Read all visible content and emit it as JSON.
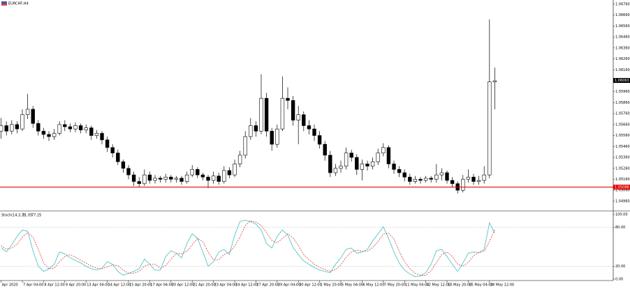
{
  "chart_data": [
    {
      "type": "candlestick",
      "title": "EURCHF,H4",
      "categories": [
        "Apr 2020",
        null,
        null,
        null,
        "7 Apr 04:00",
        null,
        null,
        null,
        "8 Apr 12:00",
        null,
        null,
        null,
        "9 Apr 20:00",
        null,
        null,
        null,
        "13 Apr 04:00",
        null,
        null,
        null,
        "14 Apr 12:00",
        null,
        null,
        null,
        "15 Apr 20:00",
        null,
        null,
        null,
        "17 Apr 04:00",
        null,
        null,
        null,
        "20 Apr 12:00",
        null,
        null,
        null,
        "21 Apr 20:00",
        null,
        null,
        null,
        "23 Apr 04:00",
        null,
        null,
        null,
        "24 Apr 12:00",
        null,
        null,
        null,
        "27 Apr 20:00",
        null,
        null,
        null,
        "29 Apr 04:00",
        null,
        null,
        null,
        "30 Apr 12:00",
        null,
        null,
        null,
        "1 May 20:00",
        null,
        null,
        null,
        "5 May 04:00",
        null,
        null,
        null,
        "6 May 12:00",
        null,
        null,
        null,
        "7 May 20:00",
        null,
        null,
        null,
        "11 May 04:00",
        null,
        null,
        null,
        "12 May 12:00",
        null,
        null,
        null,
        "13 May 20:00",
        null,
        null,
        null,
        "15 May 04:00",
        null,
        null,
        null,
        "18 May 12:00",
        null
      ],
      "open": [
        1.056,
        1.0565,
        1.056,
        1.0566,
        1.0562,
        1.0575,
        1.058,
        1.0567,
        1.056,
        1.0557,
        1.0555,
        1.0558,
        1.0566,
        1.0564,
        1.0562,
        1.0565,
        1.0561,
        1.0563,
        1.0556,
        1.0558,
        1.0552,
        1.0545,
        1.054,
        1.0532,
        1.0526,
        1.052,
        1.0514,
        1.0512,
        1.052,
        1.0515,
        1.0517,
        1.0516,
        1.0518,
        1.0516,
        1.0517,
        1.0514,
        1.052,
        1.0525,
        1.052,
        1.0518,
        1.0515,
        1.0519,
        1.0514,
        1.0524,
        1.052,
        1.053,
        1.0538,
        1.0555,
        1.0565,
        1.056,
        1.059,
        1.056,
        1.0548,
        1.0562,
        1.059,
        1.0588,
        1.057,
        1.0575,
        1.0565,
        1.0562,
        1.0556,
        1.0548,
        1.0538,
        1.0522,
        1.0526,
        1.0528,
        1.054,
        1.0536,
        1.0525,
        1.053,
        1.0528,
        1.0532,
        1.054,
        1.0545,
        1.053,
        1.0525,
        1.0522,
        1.0518,
        1.0514,
        1.0516,
        1.0515,
        1.0517,
        1.0516,
        1.052,
        1.0522,
        1.0515,
        1.0512,
        1.0506,
        1.0516,
        1.0518,
        1.0514,
        1.0515,
        1.052,
        1.0605
      ],
      "high": [
        1.0572,
        1.0569,
        1.057,
        1.0569,
        1.058,
        1.0594,
        1.0583,
        1.057,
        1.0563,
        1.056,
        1.0562,
        1.0569,
        1.057,
        1.0567,
        1.0568,
        1.0567,
        1.0566,
        1.0565,
        1.0561,
        1.056,
        1.0555,
        1.0548,
        1.0543,
        1.0534,
        1.0529,
        1.0523,
        1.0518,
        1.0525,
        1.0523,
        1.052,
        1.0519,
        1.0521,
        1.052,
        1.0519,
        1.0519,
        1.0523,
        1.0529,
        1.0527,
        1.0522,
        1.052,
        1.0523,
        1.0522,
        1.0528,
        1.0527,
        1.0534,
        1.0542,
        1.056,
        1.0572,
        1.0569,
        1.0612,
        1.0595,
        1.0563,
        1.0566,
        1.061,
        1.06,
        1.0592,
        1.0583,
        1.0578,
        1.057,
        1.0566,
        1.056,
        1.0551,
        1.0542,
        1.053,
        1.0533,
        1.0545,
        1.0543,
        1.0539,
        1.0534,
        1.0533,
        1.0536,
        1.0544,
        1.0549,
        1.0547,
        1.0533,
        1.0528,
        1.0525,
        1.0521,
        1.0519,
        1.0518,
        1.0519,
        1.0519,
        1.053,
        1.0526,
        1.0524,
        1.0518,
        1.0514,
        1.052,
        1.0525,
        1.0521,
        1.0519,
        1.0528,
        1.0662,
        1.0618
      ],
      "low": [
        1.0553,
        1.0556,
        1.0557,
        1.0558,
        1.056,
        1.0571,
        1.0563,
        1.0556,
        1.0553,
        1.0551,
        1.0552,
        1.0556,
        1.056,
        1.0559,
        1.0559,
        1.0558,
        1.0558,
        1.0552,
        1.0553,
        1.0548,
        1.0541,
        1.0536,
        1.0529,
        1.0522,
        1.0516,
        1.051,
        1.0509,
        1.051,
        1.0512,
        1.0512,
        1.0513,
        1.0513,
        1.0513,
        1.0513,
        1.0511,
        1.0512,
        1.0518,
        1.0517,
        1.0515,
        1.0508,
        1.0512,
        1.0511,
        1.0512,
        1.0517,
        1.0518,
        1.0527,
        1.0535,
        1.0552,
        1.0555,
        1.0557,
        1.0555,
        1.0542,
        1.0545,
        1.056,
        1.058,
        1.0565,
        1.0548,
        1.056,
        1.0557,
        1.0551,
        1.0544,
        1.0533,
        1.0518,
        1.0519,
        1.0522,
        1.0525,
        1.0532,
        1.052,
        1.0515,
        1.0524,
        1.0525,
        1.0529,
        1.0537,
        1.0526,
        1.0521,
        1.0518,
        1.0514,
        1.0511,
        1.0512,
        1.0512,
        1.0513,
        1.0513,
        1.0513,
        1.0515,
        1.0512,
        1.0509,
        1.0503,
        1.0504,
        1.0513,
        1.0511,
        1.0511,
        1.0512,
        1.0517,
        1.058
      ],
      "close": [
        1.0565,
        1.056,
        1.0566,
        1.0562,
        1.0575,
        1.058,
        1.0567,
        1.056,
        1.0557,
        1.0555,
        1.0558,
        1.0566,
        1.0564,
        1.0562,
        1.0565,
        1.0561,
        1.0563,
        1.0556,
        1.0558,
        1.0552,
        1.0545,
        1.054,
        1.0532,
        1.0526,
        1.052,
        1.0514,
        1.0512,
        1.052,
        1.0515,
        1.0517,
        1.0516,
        1.0518,
        1.0516,
        1.0517,
        1.0514,
        1.052,
        1.0525,
        1.052,
        1.0518,
        1.0515,
        1.0519,
        1.0514,
        1.0524,
        1.052,
        1.053,
        1.0538,
        1.0555,
        1.0565,
        1.056,
        1.059,
        1.056,
        1.0548,
        1.0562,
        1.059,
        1.0588,
        1.057,
        1.0575,
        1.0565,
        1.0562,
        1.0556,
        1.0548,
        1.0538,
        1.0522,
        1.0526,
        1.0528,
        1.054,
        1.0536,
        1.0525,
        1.053,
        1.0528,
        1.0532,
        1.054,
        1.0545,
        1.053,
        1.0525,
        1.0522,
        1.0518,
        1.0514,
        1.0516,
        1.0515,
        1.0517,
        1.0516,
        1.052,
        1.0522,
        1.0515,
        1.0512,
        1.0506,
        1.0516,
        1.0518,
        1.0514,
        1.0515,
        1.052,
        1.0605,
        1.0606
      ],
      "up_color": "#ffffff",
      "down_color": "#000000",
      "wick_color": "#000000",
      "ylim": [
        1.04877,
        1.06798
      ],
      "yticks": [
        {
          "value": 1.0676,
          "label": "1.06760"
        },
        {
          "value": 1.0666,
          "label": "1.06660"
        },
        {
          "value": 1.0656,
          "label": "1.06560"
        },
        {
          "value": 1.0646,
          "label": "1.06460"
        },
        {
          "value": 1.0636,
          "label": "1.06360"
        },
        {
          "value": 1.0626,
          "label": "1.06260"
        },
        {
          "value": 1.0616,
          "label": "1.06160"
        },
        {
          "value": 1.0596,
          "label": "1.05960"
        },
        {
          "value": 1.0586,
          "label": "1.05860"
        },
        {
          "value": 1.0576,
          "label": "1.05760"
        },
        {
          "value": 1.0566,
          "label": "1.05660"
        },
        {
          "value": 1.0556,
          "label": "1.05560"
        },
        {
          "value": 1.0546,
          "label": "1.05460"
        },
        {
          "value": 1.0536,
          "label": "1.05360"
        },
        {
          "value": 1.0526,
          "label": "1.05260"
        },
        {
          "value": 1.0516,
          "label": "1.05160"
        },
        {
          "value": 1.0506,
          "label": "1.05060"
        },
        {
          "value": 1.0496,
          "label": "1.04960"
        }
      ],
      "bid": 1.06063,
      "hline": {
        "value": 1.05088,
        "color": "#e00000"
      }
    },
    {
      "type": "line",
      "title": "Stoch(14,3,3)",
      "series": [
        {
          "name": "Main",
          "color": "#3fbfbf",
          "dash": false,
          "values": [
            49,
            42,
            53,
            66,
            76,
            74,
            44,
            20,
            12,
            16,
            23,
            42,
            39,
            33,
            29,
            25,
            20,
            16,
            14,
            17,
            27,
            23,
            12,
            6,
            9,
            12,
            16,
            31,
            23,
            14,
            14,
            35,
            44,
            40,
            33,
            55,
            70,
            63,
            42,
            20,
            27,
            42,
            46,
            38,
            68,
            89,
            91,
            89,
            85,
            76,
            55,
            48,
            66,
            76,
            68,
            49,
            38,
            28,
            23,
            18,
            14,
            12,
            10,
            23,
            33,
            46,
            48,
            40,
            42,
            46,
            59,
            70,
            81,
            63,
            42,
            25,
            14,
            8,
            4,
            5,
            10,
            23,
            44,
            46,
            35,
            23,
            12,
            25,
            40,
            42,
            41,
            46,
            87,
            71.05
          ]
        },
        {
          "name": "Signal",
          "color": "#e03c3c",
          "dash": true,
          "values": [
            52,
            46,
            48,
            54,
            65,
            72,
            65,
            46,
            25,
            16,
            17,
            27,
            35,
            38,
            34,
            29,
            25,
            20,
            17,
            16,
            19,
            22,
            21,
            14,
            9,
            9,
            12,
            20,
            23,
            23,
            17,
            21,
            31,
            40,
            39,
            43,
            53,
            63,
            58,
            42,
            30,
            30,
            38,
            42,
            51,
            65,
            83,
            90,
            88,
            83,
            72,
            60,
            56,
            63,
            70,
            64,
            52,
            38,
            30,
            23,
            18,
            15,
            12,
            15,
            22,
            34,
            42,
            45,
            43,
            43,
            49,
            58,
            70,
            71,
            62,
            43,
            27,
            16,
            9,
            6,
            6,
            13,
            26,
            38,
            42,
            35,
            23,
            20,
            26,
            36,
            41,
            43,
            58,
            77.25
          ]
        }
      ],
      "ylim": [
        0,
        100
      ],
      "yticks": [
        {
          "value": 100,
          "label": "100.00"
        },
        {
          "value": 80,
          "label": "80.00"
        },
        {
          "value": 20,
          "label": "20.00"
        },
        {
          "value": 0,
          "label": "0.00"
        }
      ],
      "levels": [
        80,
        20
      ]
    }
  ]
}
